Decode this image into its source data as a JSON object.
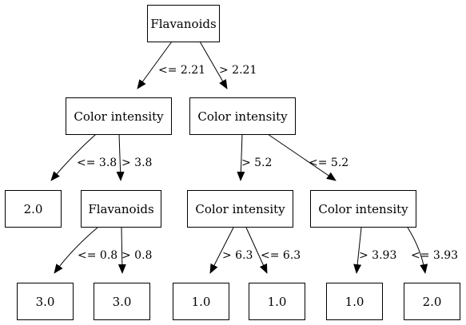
{
  "tree": {
    "nodes": [
      {
        "id": "n0",
        "label": "Flavanoids"
      },
      {
        "id": "n1",
        "label": "Color intensity"
      },
      {
        "id": "n2",
        "label": "Color intensity"
      },
      {
        "id": "n3",
        "label": "2.0"
      },
      {
        "id": "n4",
        "label": "Flavanoids"
      },
      {
        "id": "n5",
        "label": "Color intensity"
      },
      {
        "id": "n6",
        "label": "Color intensity"
      },
      {
        "id": "n7",
        "label": "3.0"
      },
      {
        "id": "n8",
        "label": "3.0"
      },
      {
        "id": "n9",
        "label": "1.0"
      },
      {
        "id": "n10",
        "label": "1.0"
      },
      {
        "id": "n11",
        "label": "1.0"
      },
      {
        "id": "n12",
        "label": "2.0"
      }
    ],
    "edges": [
      {
        "from": "n0",
        "to": "n1",
        "label": "<= 2.21"
      },
      {
        "from": "n0",
        "to": "n2",
        "label": "> 2.21"
      },
      {
        "from": "n1",
        "to": "n3",
        "label": "<= 3.8"
      },
      {
        "from": "n1",
        "to": "n4",
        "label": "> 3.8"
      },
      {
        "from": "n2",
        "to": "n5",
        "label": "> 5.2"
      },
      {
        "from": "n2",
        "to": "n6",
        "label": "<= 5.2"
      },
      {
        "from": "n4",
        "to": "n7",
        "label": "<= 0.8"
      },
      {
        "from": "n4",
        "to": "n8",
        "label": "> 0.8"
      },
      {
        "from": "n5",
        "to": "n9",
        "label": "> 6.3"
      },
      {
        "from": "n5",
        "to": "n10",
        "label": "<= 6.3"
      },
      {
        "from": "n6",
        "to": "n11",
        "label": "> 3.93"
      },
      {
        "from": "n6",
        "to": "n12",
        "label": "<= 3.93"
      }
    ]
  }
}
